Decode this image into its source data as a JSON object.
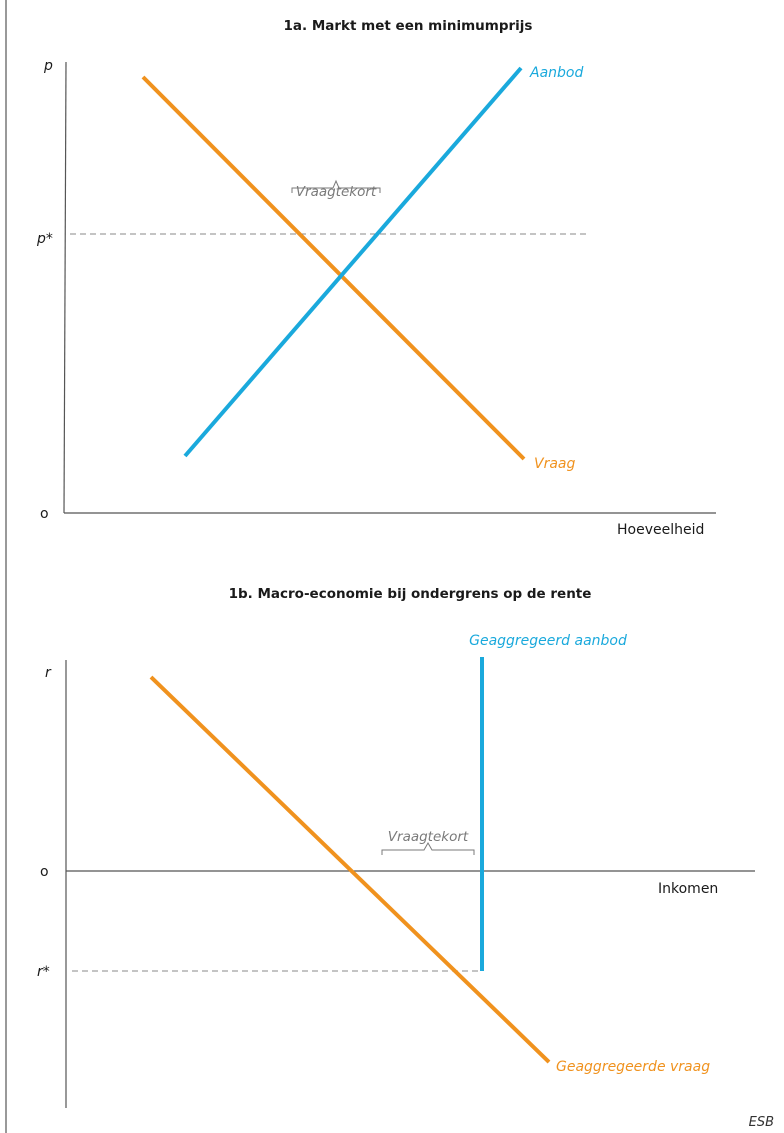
{
  "panel_a": {
    "title": "1a. Markt met een minimumprijs",
    "y_symbol": "p",
    "price_floor_label": "p*",
    "origin_label": "o",
    "x_label": "Hoeveelheid",
    "supply_label": "Aanbod",
    "demand_label": "Vraag",
    "gap_label": "Vraagtekort"
  },
  "panel_b": {
    "title": "1b. Macro-economie bij ondergrens op de rente",
    "y_symbol": "r",
    "origin_label": "o",
    "rate_floor_label": "r*",
    "x_label": "Inkomen",
    "supply_label": "Geaggregeerd aanbod",
    "demand_label": "Geaggregeerde vraag",
    "gap_label": "Vraagtekort"
  },
  "source": "ESB",
  "colors": {
    "supply": "#1aa9dc",
    "demand": "#f0921e",
    "axis": "#555555",
    "guide": "#888888"
  }
}
